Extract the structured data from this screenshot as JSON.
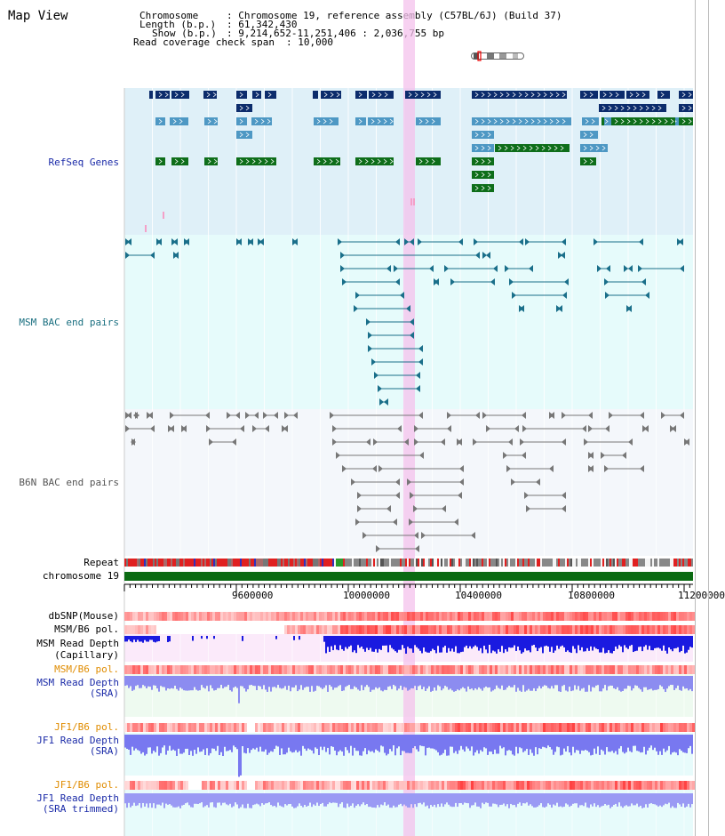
{
  "app": {
    "title": "Map View"
  },
  "info": {
    "chromosome_key": "Chromosome",
    "chromosome_val": ": Chromosome 19, reference assembly (C57BL/6J) (Build 37)",
    "length_key": "Length (b.p.)",
    "length_val": ": 61,342,430",
    "show_key": "Show (b.p.)",
    "show_val": ": 9,214,652-11,251,406 : 2,036,755 bp",
    "span_key": "Read coverage check span",
    "span_val": ": 10,000"
  },
  "tracks": {
    "refseq": "RefSeq Genes",
    "msm_bac": "MSM BAC end pairs",
    "b6n_bac": "B6N BAC end pairs",
    "repeat": "Repeat",
    "chromosome": "chromosome 19",
    "dbsnp": "dbSNP(Mouse)",
    "msm_b6_pol_1": "MSM/B6 pol.",
    "msm_read_depth_cap_1": "MSM Read Depth",
    "msm_read_depth_cap_2": "(Capillary)",
    "msm_b6_pol_2": "MSM/B6 pol.",
    "msm_read_depth_sra_1": "MSM Read Depth",
    "msm_read_depth_sra_2": "(SRA)",
    "jf1_b6_pol_1": "JF1/B6 pol.",
    "jf1_read_depth_sra_1": "JF1 Read Depth",
    "jf1_read_depth_sra_2": "(SRA)",
    "jf1_b6_pol_2": "JF1/B6 pol.",
    "jf1_read_depth_trim_1": "JF1 Read Depth",
    "jf1_read_depth_trim_2": "(SRA trimmed)"
  },
  "axis": {
    "ticks": [
      "9600000",
      "10000000",
      "10400000",
      "10800000",
      "11200000"
    ]
  },
  "colors": {
    "refseq_bg": "#dff0f8",
    "msm_bg": "#e6fbfb",
    "b6n_bg": "#f4f7fb",
    "highlight": "#f7c8ef",
    "label_blue": "#1a2aa8",
    "label_teal": "#1a6f80",
    "label_orange": "#e08c00"
  }
}
